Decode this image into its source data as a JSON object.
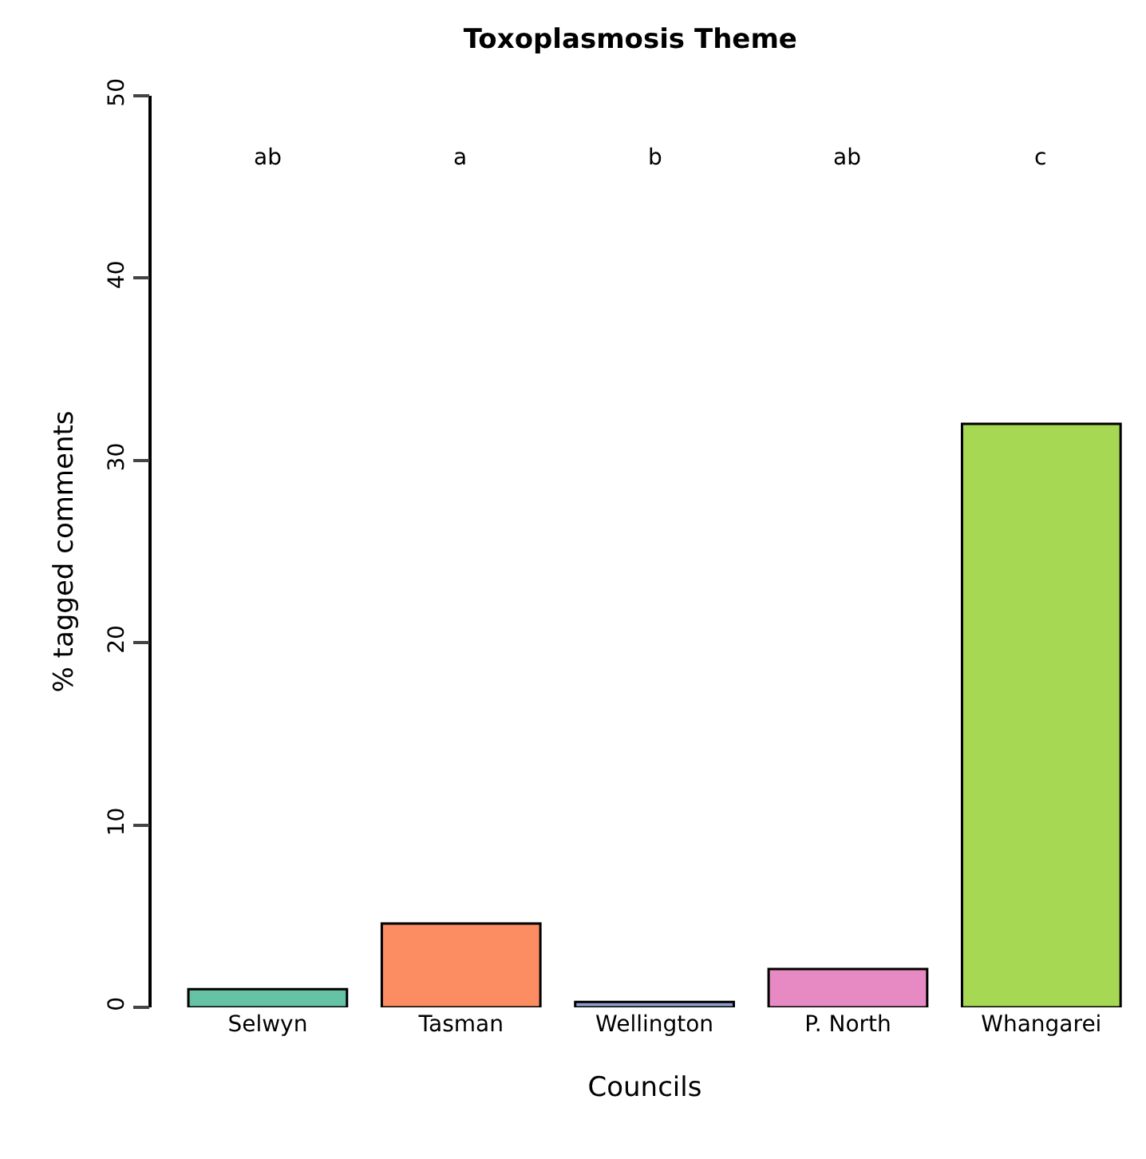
{
  "chart_data": {
    "type": "bar",
    "title": "Toxoplasmosis Theme",
    "xlabel": "Councils",
    "ylabel": "% tagged comments",
    "categories": [
      "Selwyn",
      "Tasman",
      "Wellington",
      "P. North",
      "Whangarei"
    ],
    "values": [
      1.0,
      4.6,
      0.3,
      2.1,
      32.0
    ],
    "colors": [
      "#66c2a5",
      "#fc8d62",
      "#8da0cb",
      "#e78ac3",
      "#a6d854"
    ],
    "ylim": [
      0,
      50
    ],
    "yticks": [
      0,
      10,
      20,
      30,
      40,
      50
    ],
    "annotations": [
      "ab",
      "a",
      "b",
      "ab",
      "c"
    ]
  }
}
